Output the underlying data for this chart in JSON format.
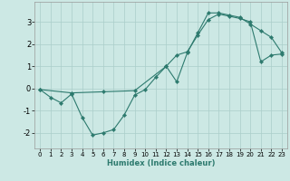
{
  "line1_x": [
    0,
    1,
    2,
    3,
    4,
    5,
    6,
    7,
    8,
    9,
    10,
    11,
    12,
    13,
    14,
    15,
    16,
    17,
    18,
    19,
    20,
    21,
    22,
    23
  ],
  "line1_y": [
    -0.05,
    -0.4,
    -0.65,
    -0.25,
    -1.3,
    -2.1,
    -2.0,
    -1.85,
    -1.2,
    -0.3,
    -0.05,
    0.5,
    1.0,
    0.3,
    1.6,
    2.5,
    3.4,
    3.4,
    3.3,
    3.2,
    2.9,
    2.6,
    2.3,
    1.6
  ],
  "line2_x": [
    0,
    3,
    6,
    9,
    12,
    13,
    14,
    15,
    16,
    17,
    18,
    19,
    20,
    21,
    22,
    23
  ],
  "line2_y": [
    -0.05,
    -0.2,
    -0.15,
    -0.1,
    1.0,
    1.5,
    1.65,
    2.4,
    3.1,
    3.35,
    3.25,
    3.15,
    3.0,
    1.2,
    1.5,
    1.55
  ],
  "bg_color": "#cce8e4",
  "grid_color": "#aaceca",
  "line_color": "#2d7a6e",
  "xlabel": "Humidex (Indice chaleur)",
  "xlim": [
    -0.5,
    23.5
  ],
  "ylim": [
    -2.7,
    3.9
  ],
  "yticks": [
    -2,
    -1,
    0,
    1,
    2,
    3
  ],
  "xticks": [
    0,
    1,
    2,
    3,
    4,
    5,
    6,
    7,
    8,
    9,
    10,
    11,
    12,
    13,
    14,
    15,
    16,
    17,
    18,
    19,
    20,
    21,
    22,
    23
  ]
}
